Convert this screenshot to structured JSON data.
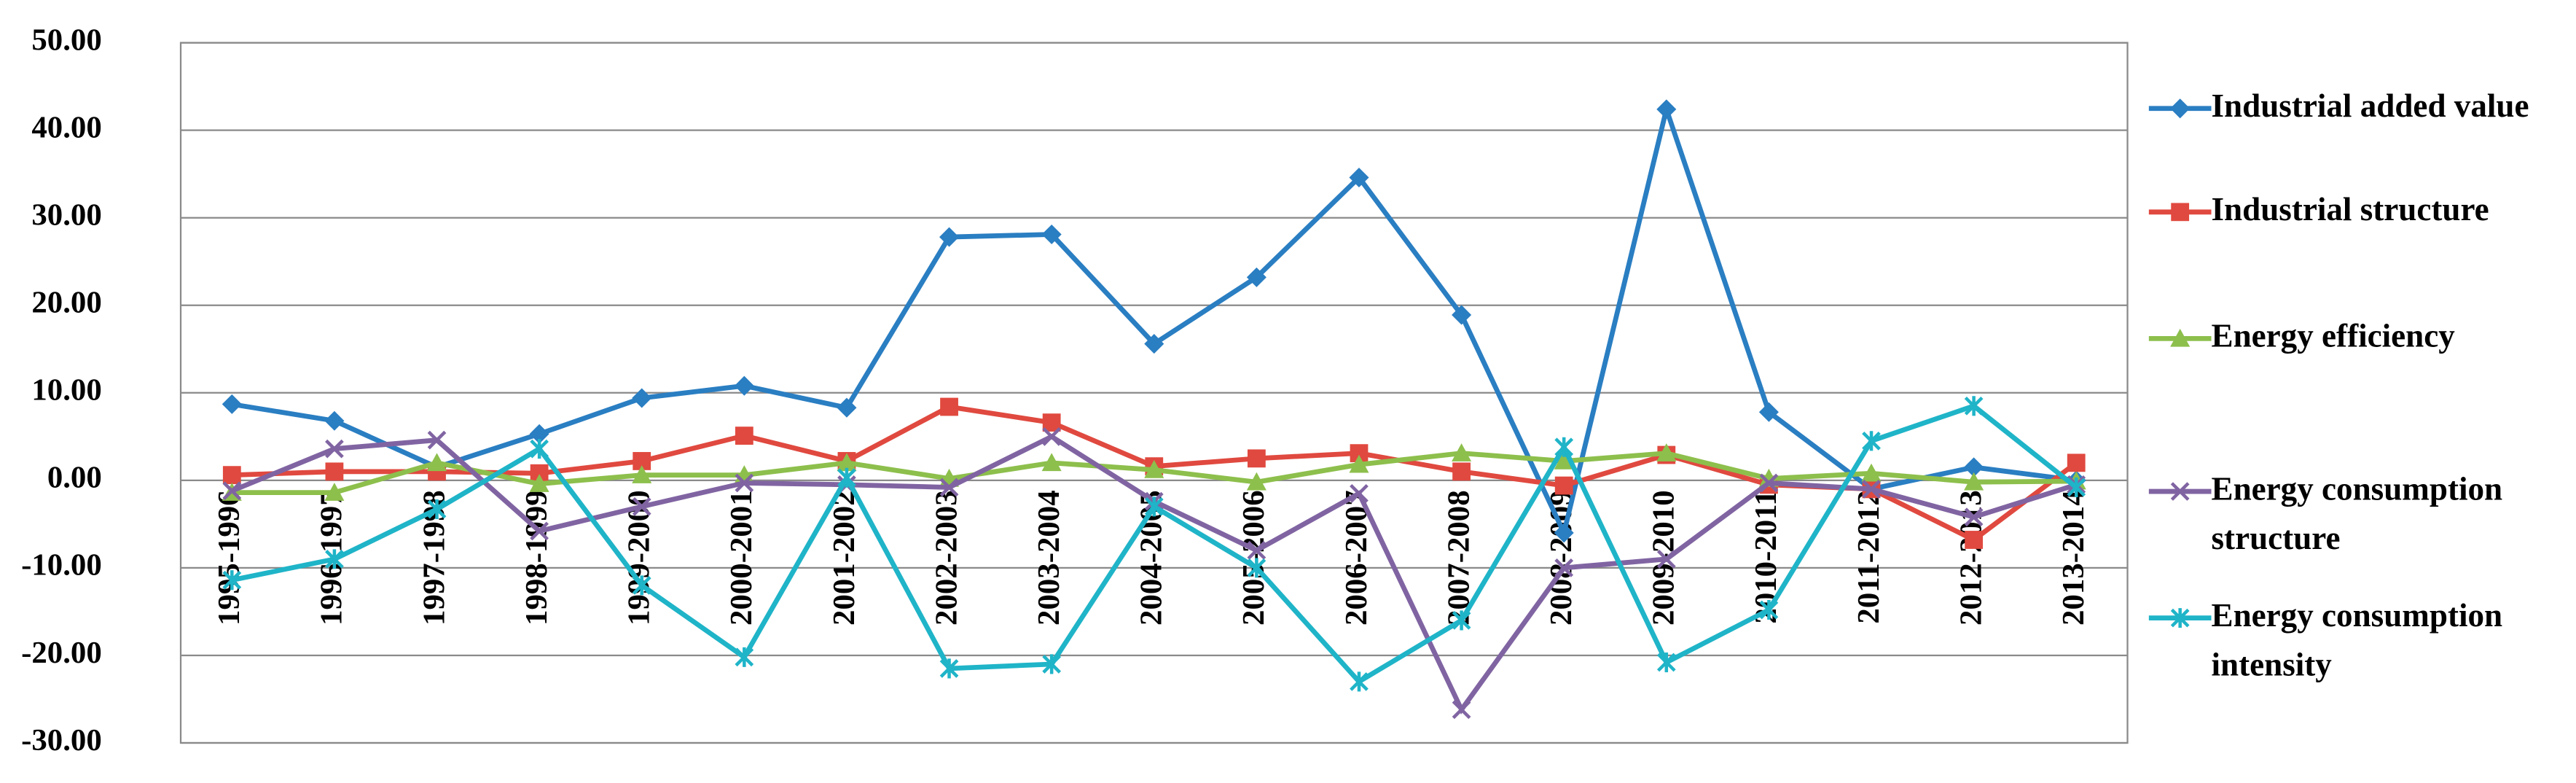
{
  "chart_data": {
    "type": "line",
    "categories": [
      "1995-1996",
      "1996-1997",
      "1997-1998",
      "1998-1999",
      "1999-2000",
      "2000-2001",
      "2001-2002",
      "2002-2003",
      "2003-2004",
      "2004-2005",
      "2005-2006",
      "2006-2007",
      "2007-2008",
      "2008-2009",
      "2009-2010",
      "2010-2011",
      "2011-2012",
      "2012-2013",
      "2013-2014"
    ],
    "series": [
      {
        "name": "Industrial added value",
        "color": "#2a7ec2",
        "marker": "diamond",
        "values": [
          8.7,
          6.8,
          1.5,
          5.3,
          9.4,
          10.8,
          8.3,
          27.8,
          28.1,
          15.6,
          23.2,
          34.6,
          18.9,
          -6.0,
          42.4,
          7.8,
          -1.0,
          1.5,
          0.0
        ]
      },
      {
        "name": "Industrial structure",
        "color": "#e0493f",
        "marker": "square",
        "values": [
          0.6,
          1.0,
          1.0,
          0.8,
          2.2,
          5.1,
          2.2,
          8.4,
          6.6,
          1.6,
          2.5,
          3.1,
          1.0,
          -0.6,
          2.9,
          -0.5,
          -1.0,
          -6.8,
          2.0
        ]
      },
      {
        "name": "Energy efficiency",
        "color": "#8dbf4c",
        "marker": "triangle",
        "values": [
          -1.4,
          -1.4,
          2.0,
          -0.4,
          0.6,
          0.6,
          2.0,
          0.2,
          2.0,
          1.2,
          -0.2,
          1.8,
          3.1,
          2.2,
          3.1,
          0.2,
          0.8,
          -0.2,
          -0.1
        ]
      },
      {
        "name": "Energy consumption structure",
        "color": "#8064a2",
        "marker": "x",
        "values": [
          -1.2,
          3.6,
          4.6,
          -5.8,
          -3.0,
          -0.3,
          -0.5,
          -0.8,
          5.0,
          -2.4,
          -8.0,
          -1.5,
          -26.2,
          -10.0,
          -9.0,
          -0.3,
          -1.0,
          -4.2,
          -0.5
        ]
      },
      {
        "name": "Energy consumption intensity",
        "color": "#1fb4c8",
        "marker": "star",
        "values": [
          -11.4,
          -9.0,
          -3.3,
          3.6,
          -12.0,
          -20.2,
          0.3,
          -21.5,
          -21.0,
          -3.0,
          -10.0,
          -23.0,
          -16.0,
          3.8,
          -20.8,
          -14.8,
          4.5,
          8.5,
          -0.8
        ]
      }
    ],
    "ylim": [
      -30,
      50
    ],
    "yticks": [
      {
        "value": -30,
        "label": "-30.00"
      },
      {
        "value": -20,
        "label": "-20.00"
      },
      {
        "value": -10,
        "label": "-10.00"
      },
      {
        "value": 0,
        "label": "0.00"
      },
      {
        "value": 10,
        "label": "10.00"
      },
      {
        "value": 20,
        "label": "20.00"
      },
      {
        "value": 30,
        "label": "30.00"
      },
      {
        "value": 40,
        "label": "40.00"
      },
      {
        "value": 50,
        "label": "50.00"
      }
    ],
    "grid": true,
    "legend": "right"
  }
}
